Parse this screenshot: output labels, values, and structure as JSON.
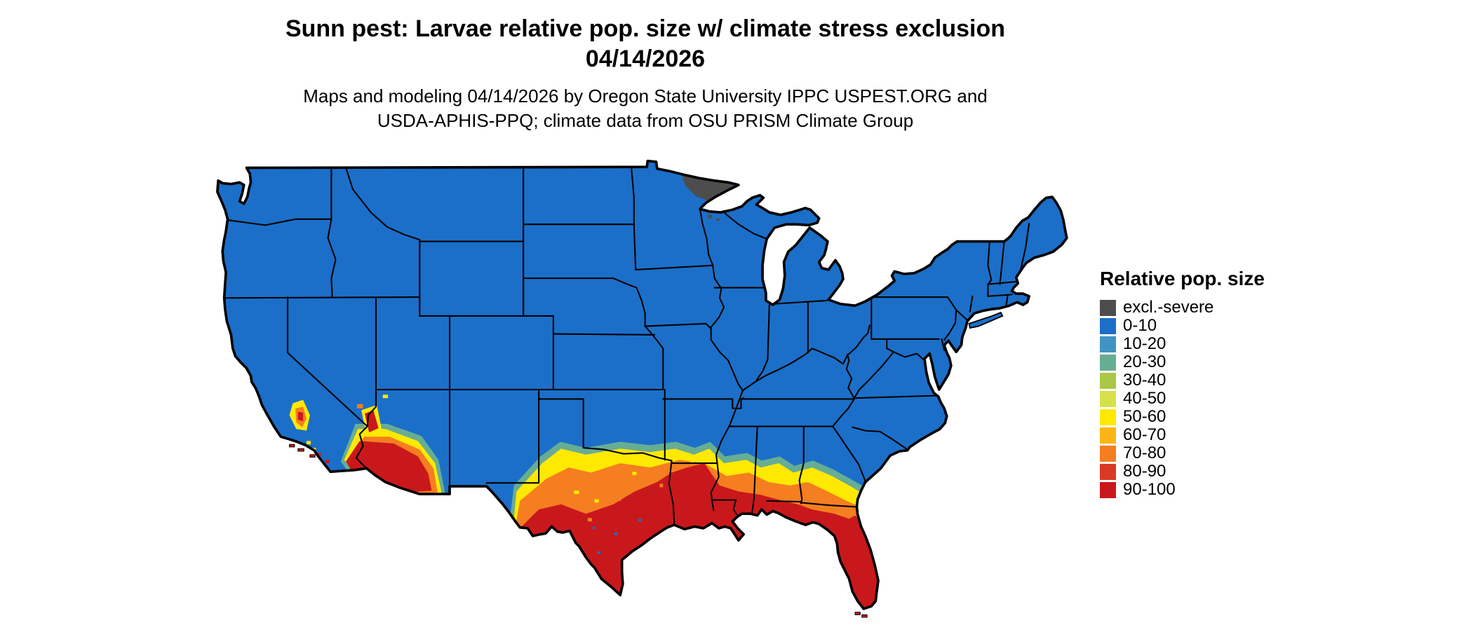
{
  "header": {
    "title_line1": "Sunn pest: Larvae relative pop. size w/ climate stress exclusion",
    "title_line2": "04/14/2026",
    "subtitle_line1": "Maps and modeling 04/14/2026 by Oregon State University IPPC USPEST.ORG and",
    "subtitle_line2": "USDA-APHIS-PPQ; climate data from OSU PRISM Climate Group"
  },
  "legend": {
    "title": "Relative pop. size",
    "items": [
      {
        "label": "excl.-severe",
        "color": "#4d4d4d"
      },
      {
        "label": "0-10",
        "color": "#1b6fc8"
      },
      {
        "label": "10-20",
        "color": "#4193c4"
      },
      {
        "label": "20-30",
        "color": "#67ad94"
      },
      {
        "label": "30-40",
        "color": "#abc747"
      },
      {
        "label": "40-50",
        "color": "#d6e04b"
      },
      {
        "label": "50-60",
        "color": "#ffe900"
      },
      {
        "label": "60-70",
        "color": "#fcb514"
      },
      {
        "label": "70-80",
        "color": "#f57e20"
      },
      {
        "label": "80-90",
        "color": "#d93a24"
      },
      {
        "label": "90-100",
        "color": "#c9181c"
      }
    ]
  },
  "map": {
    "region": "Conterminous United States",
    "outline_color": "#000000",
    "state_line_color": "#000000"
  }
}
